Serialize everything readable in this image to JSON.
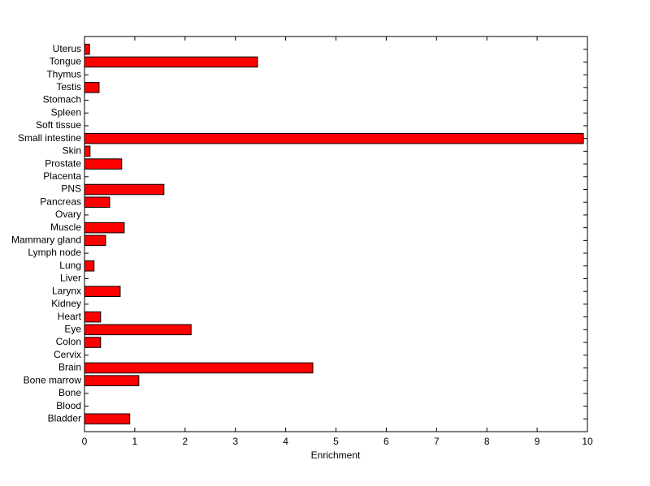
{
  "chart_data": {
    "type": "barh",
    "xlabel": "Enrichment",
    "categories": [
      "Bladder",
      "Blood",
      "Bone",
      "Bone marrow",
      "Brain",
      "Cervix",
      "Colon",
      "Eye",
      "Heart",
      "Kidney",
      "Larynx",
      "Liver",
      "Lung",
      "Lymph node",
      "Mammary gland",
      "Muscle",
      "Ovary",
      "Pancreas",
      "PNS",
      "Placenta",
      "Prostate",
      "Skin",
      "Small intestine",
      "Soft tissue",
      "Spleen",
      "Stomach",
      "Testis",
      "Thymus",
      "Tongue",
      "Uterus"
    ],
    "values": [
      0.9,
      0,
      0,
      1.08,
      4.54,
      0,
      0.32,
      2.12,
      0.32,
      0,
      0.71,
      0,
      0.19,
      0,
      0.42,
      0.79,
      0,
      0.5,
      1.58,
      0,
      0.74,
      0.11,
      9.92,
      0,
      0,
      0,
      0.29,
      0,
      3.44,
      0.1
    ],
    "color": "#ff0000",
    "xlim": [
      0,
      10
    ],
    "xticks": [
      0,
      1,
      2,
      3,
      4,
      5,
      6,
      7,
      8,
      9,
      10
    ]
  }
}
